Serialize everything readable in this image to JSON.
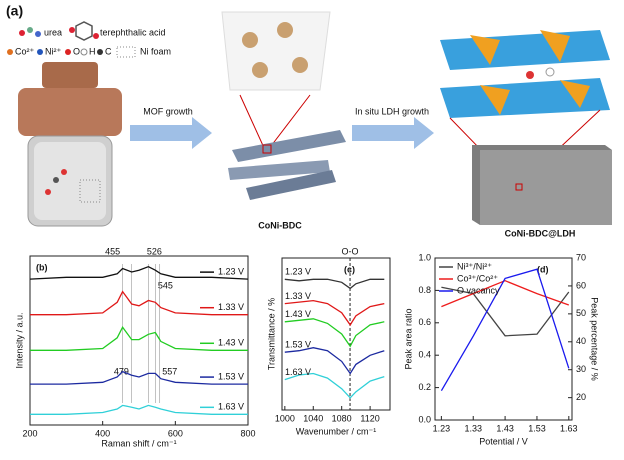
{
  "panel_a": {
    "label": "(a)",
    "legend": [
      "urea",
      "terephthalic acid",
      "Co²⁺",
      "Ni²⁺",
      "O",
      "H",
      "C",
      "Ni foam"
    ],
    "steps": [
      "MOF growth",
      "In situ LDH growth"
    ],
    "products": [
      "CoNi-BDC",
      "CoNi-BDC@LDH"
    ]
  },
  "chart_data": [
    {
      "type": "line",
      "label": "(b)",
      "xlabel": "Raman shift / cm⁻¹",
      "ylabel": "Intensity / a.u.",
      "x": [
        200,
        300,
        400,
        440,
        455,
        480,
        500,
        526,
        545,
        560,
        600,
        700,
        800
      ],
      "xlim": [
        200,
        800
      ],
      "xticks": [
        200,
        400,
        600,
        800
      ],
      "ylim": [
        0,
        9.5
      ],
      "peaks": [
        455,
        526,
        545,
        479,
        557
      ],
      "series": [
        {
          "name": "1.23 V",
          "color": "#111111",
          "values": [
            8.2,
            8.3,
            8.3,
            8.5,
            8.8,
            8.6,
            8.7,
            8.9,
            8.7,
            8.5,
            8.3,
            8.3,
            8.2
          ]
        },
        {
          "name": "1.33 V",
          "color": "#e01818",
          "values": [
            6.2,
            6.2,
            6.3,
            6.9,
            7.5,
            6.8,
            6.7,
            7.0,
            6.9,
            6.6,
            6.3,
            6.2,
            6.2
          ]
        },
        {
          "name": "1.43 V",
          "color": "#22cc22",
          "values": [
            4.2,
            4.2,
            4.3,
            4.9,
            5.5,
            4.8,
            4.8,
            5.1,
            5.2,
            4.7,
            4.3,
            4.2,
            4.2
          ]
        },
        {
          "name": "1.53 V",
          "color": "#1c2aa0",
          "values": [
            2.3,
            2.3,
            2.4,
            2.7,
            3.0,
            2.8,
            2.7,
            2.9,
            2.9,
            2.6,
            2.4,
            2.3,
            2.3
          ]
        },
        {
          "name": "1.63 V",
          "color": "#30d0d8",
          "values": [
            0.6,
            0.6,
            0.7,
            0.9,
            1.1,
            1.0,
            0.9,
            1.1,
            1.0,
            0.9,
            0.7,
            0.6,
            0.6
          ]
        }
      ]
    },
    {
      "type": "line",
      "label": "(c)",
      "xlabel": "Wavenumber / cm⁻¹",
      "ylabel": "Transmittance / %",
      "annotation": "O-O",
      "x": [
        1000,
        1020,
        1040,
        1060,
        1080,
        1092,
        1100,
        1120,
        1140
      ],
      "xlim": [
        996,
        1148
      ],
      "xticks": [
        1000,
        1040,
        1080,
        1120
      ],
      "ylim": [
        0,
        10
      ],
      "series": [
        {
          "name": "1.23 V",
          "color": "#333333",
          "values": [
            8.6,
            8.5,
            8.6,
            8.6,
            8.4,
            8.0,
            8.3,
            8.6,
            8.6
          ]
        },
        {
          "name": "1.33 V",
          "color": "#e01818",
          "values": [
            7.0,
            7.1,
            7.2,
            7.0,
            6.4,
            5.6,
            6.2,
            6.8,
            7.0
          ]
        },
        {
          "name": "1.43 V",
          "color": "#22cc22",
          "values": [
            5.8,
            5.9,
            6.0,
            5.7,
            5.0,
            4.2,
            4.9,
            5.6,
            5.8
          ]
        },
        {
          "name": "1.53 V",
          "color": "#1c2aa0",
          "values": [
            3.8,
            3.9,
            4.1,
            3.9,
            3.2,
            2.4,
            3.0,
            3.6,
            3.9
          ]
        },
        {
          "name": "1.63 V",
          "color": "#30d0d8",
          "values": [
            2.0,
            2.3,
            2.4,
            2.1,
            1.4,
            0.8,
            1.2,
            1.9,
            2.2
          ]
        }
      ]
    },
    {
      "type": "line",
      "label": "(d)",
      "xlabel": "Potential / V",
      "ylabel": "Peak area ratio",
      "y2label": "Peak percentage / %",
      "x": [
        1.23,
        1.33,
        1.43,
        1.53,
        1.63
      ],
      "xlim": [
        1.21,
        1.64
      ],
      "xticks": [
        1.23,
        1.33,
        1.43,
        1.53,
        1.63
      ],
      "ylim": [
        0,
        1.0
      ],
      "yticks": [
        {
          "value": 0,
          "label": "0.0"
        },
        0.2,
        0.4,
        0.6,
        0.8,
        {
          "value": 1.0,
          "label": "1.0"
        }
      ],
      "y2lim": [
        12,
        70
      ],
      "y2ticks": [
        20,
        30,
        40,
        50,
        60,
        70
      ],
      "legend": "upper left",
      "series": [
        {
          "name": "Ni³⁺/Ni²⁺",
          "color": "#444444",
          "values": [
            0.82,
            0.78,
            0.52,
            0.53,
            0.79
          ]
        },
        {
          "name": "Co³⁺/Co²⁺",
          "color": "#ee1c1c",
          "values": [
            0.7,
            0.78,
            0.86,
            0.78,
            0.71
          ]
        },
        {
          "name": "O vacancy",
          "color": "#1a1aee",
          "axis": "y2",
          "values": [
            22.5,
            42,
            62.7,
            66,
            30.5
          ]
        }
      ]
    }
  ]
}
